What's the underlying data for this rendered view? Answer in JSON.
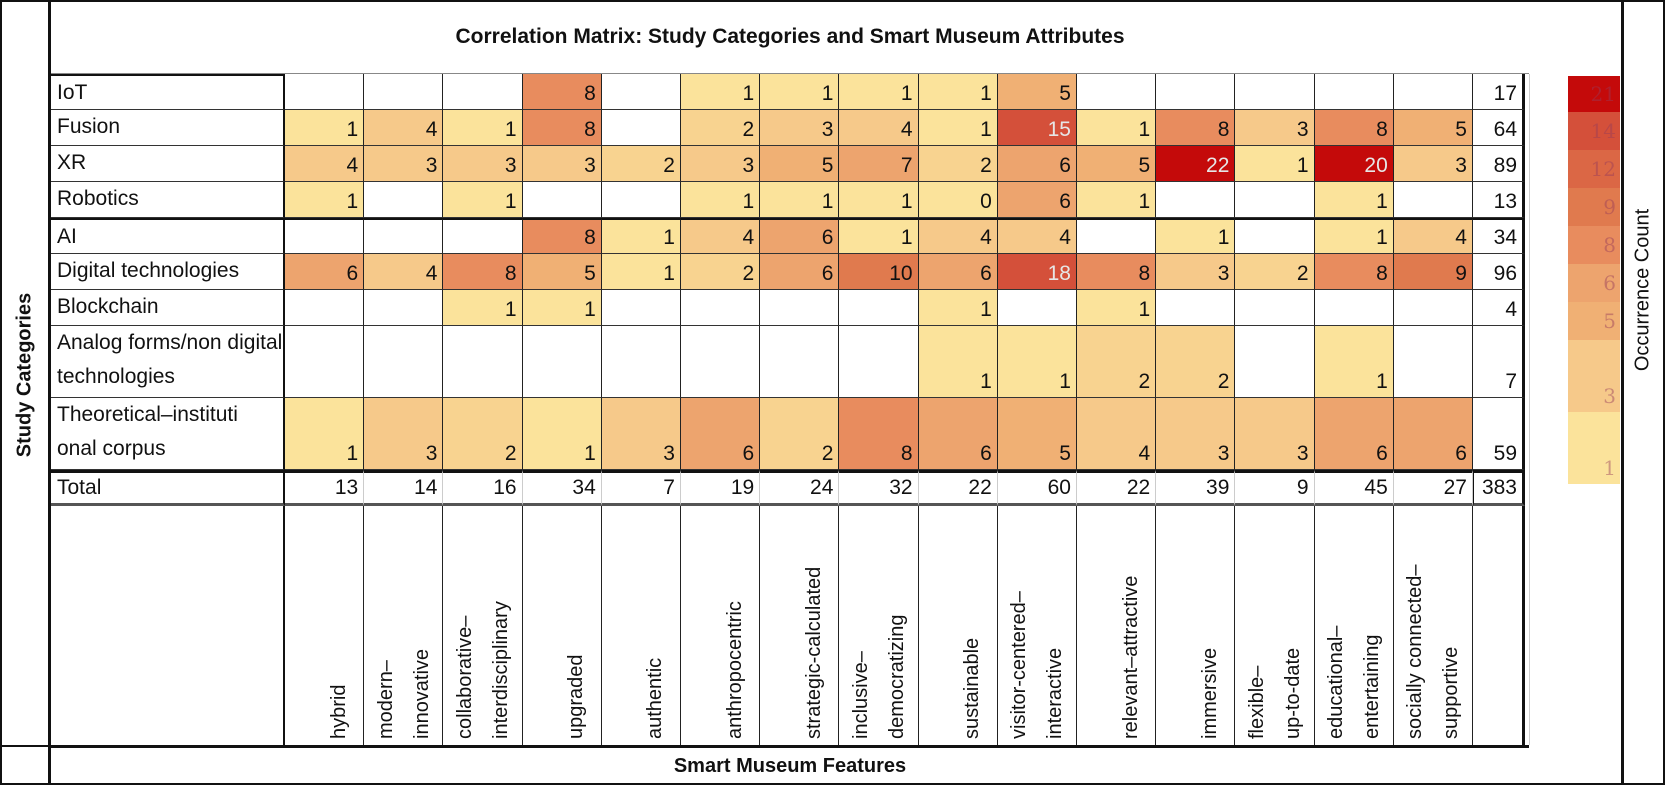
{
  "chart_data": {
    "type": "heatmap",
    "title": "Correlation Matrix: Study Categories and Smart Museum Attributes",
    "xlabel": "Smart Museum Features",
    "ylabel": "Study Categories",
    "columns": [
      "hybrid",
      "modern–\ninnovative",
      "collaborative–\ninterdisciplinary",
      "upgraded",
      "authentic",
      "anthropocentric",
      "strategic-calculated",
      "inclusive–\ndemocratizing",
      "sustainable",
      "visitor-centered–\ninteractive",
      "relevant–attractive",
      "immersive",
      "flexible–\nup-to-date",
      "educational–\nentertaining",
      "socially connected–\nsupportive"
    ],
    "rows": [
      {
        "label": "IoT",
        "values": [
          null,
          null,
          null,
          8,
          null,
          1,
          1,
          1,
          1,
          5,
          null,
          null,
          null,
          null,
          null
        ],
        "total": 17
      },
      {
        "label": "Fusion",
        "values": [
          1,
          4,
          1,
          8,
          null,
          2,
          3,
          4,
          1,
          15,
          1,
          8,
          3,
          8,
          5
        ],
        "total": 64
      },
      {
        "label": "XR",
        "values": [
          4,
          3,
          3,
          3,
          2,
          3,
          5,
          7,
          2,
          6,
          5,
          22,
          1,
          20,
          3
        ],
        "total": 89
      },
      {
        "label": "Robotics",
        "values": [
          1,
          null,
          1,
          null,
          null,
          1,
          1,
          1,
          0,
          6,
          1,
          null,
          null,
          1,
          null
        ],
        "total": 13
      },
      {
        "label": "AI",
        "values": [
          null,
          null,
          null,
          8,
          1,
          4,
          6,
          1,
          4,
          4,
          null,
          1,
          null,
          1,
          4
        ],
        "total": 34
      },
      {
        "label": "Digital technologies",
        "values": [
          6,
          4,
          8,
          5,
          1,
          2,
          6,
          10,
          6,
          18,
          8,
          3,
          2,
          8,
          9
        ],
        "total": 96
      },
      {
        "label": "Blockchain",
        "values": [
          null,
          null,
          1,
          1,
          null,
          null,
          null,
          null,
          1,
          null,
          1,
          null,
          null,
          null,
          null
        ],
        "total": 4
      },
      {
        "label": "Analog forms/non digital technologies",
        "values": [
          null,
          null,
          null,
          null,
          null,
          null,
          null,
          null,
          1,
          1,
          2,
          2,
          null,
          1,
          null
        ],
        "total": 7
      },
      {
        "label": "Theoretical–instituti onal corpus",
        "values": [
          1,
          3,
          2,
          1,
          3,
          6,
          2,
          8,
          6,
          5,
          4,
          3,
          3,
          6,
          6
        ],
        "total": 59
      }
    ],
    "total_row": {
      "label": "Total",
      "values": [
        13,
        14,
        16,
        34,
        7,
        19,
        24,
        32,
        22,
        60,
        22,
        39,
        9,
        45,
        27
      ],
      "grand_total": 383
    },
    "legend": {
      "title": "Occurrence Count",
      "position": "right",
      "stops": [
        {
          "label": "21",
          "color": "#C40A0A"
        },
        {
          "label": "14",
          "color": "#D4503A"
        },
        {
          "label": "12",
          "color": "#DB6745"
        },
        {
          "label": "9",
          "color": "#E07A4E"
        },
        {
          "label": "8",
          "color": "#E88C5E"
        },
        {
          "label": "6",
          "color": "#EDA46E"
        },
        {
          "label": "5",
          "color": "#F0B074"
        },
        {
          "label": "3",
          "color": "#F6C98A"
        },
        {
          "label": "1",
          "color": "#FBE39B"
        }
      ]
    }
  }
}
